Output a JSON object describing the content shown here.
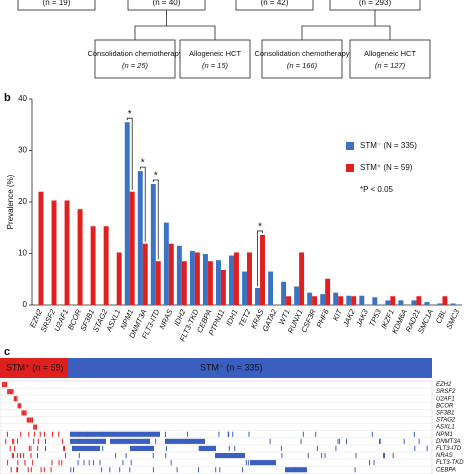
{
  "flowchart": {
    "top": [
      "(n = 19)",
      "(n = 40)",
      "(n = 42)",
      "(n = 293)"
    ],
    "nodes": [
      {
        "label": "Consolidation chemotherapy",
        "n": "(n = 25)"
      },
      {
        "label": "Allogeneic HCT",
        "n": "(n = 15)"
      },
      {
        "label": "Consolidation chemotherapy",
        "n": "(n = 166)"
      },
      {
        "label": "Allogeneic HCT",
        "n": "(n = 127)"
      }
    ]
  },
  "panels": [
    "b",
    "c"
  ],
  "chart_data": {
    "type": "bar",
    "ylabel": "Prevalence (%)",
    "categories": [
      "EZH2",
      "SRSF2",
      "U2AF1",
      "BCOR",
      "SF3B1",
      "STAG2",
      "ASXL1",
      "NPM1",
      "DNMT3A",
      "FLT3-ITD",
      "NRAS",
      "IDH2",
      "FLT3-TKD",
      "CEBPA",
      "PTPN11",
      "IDH1",
      "TET2",
      "KRAS",
      "GATA2",
      "WT1",
      "RUNX1",
      "CSF3R",
      "PHF6",
      "KIT",
      "JAK2",
      "JAK3",
      "TP53",
      "IKZF1",
      "KDM6A",
      "RAD21",
      "SMC1A",
      "CBL",
      "SMC3"
    ],
    "series": [
      {
        "name": "STM⁻ (N = 335)",
        "color": "#3b73c2",
        "values": [
          0,
          0,
          0,
          0,
          0,
          0,
          0,
          35.5,
          26,
          23.5,
          16,
          11.5,
          10.5,
          9.9,
          8.7,
          9.6,
          6.5,
          3.3,
          6.5,
          4.5,
          3.6,
          2.4,
          2.1,
          2.4,
          1.8,
          1.8,
          1.5,
          0.9,
          0.9,
          0.9,
          0.6,
          0.3,
          0.3
        ]
      },
      {
        "name": "STM⁺ (N = 59)",
        "color": "#e0201f",
        "values": [
          22,
          20.3,
          20.3,
          18.6,
          15.3,
          15.3,
          10.2,
          22,
          11.9,
          8.5,
          11.9,
          8.5,
          10.2,
          8.5,
          6.8,
          10.2,
          10.2,
          13.6,
          0,
          1.7,
          10.2,
          1.7,
          5.1,
          1.7,
          1.7,
          0,
          0,
          1.7,
          0,
          1.7,
          0,
          1.7,
          0
        ]
      }
    ],
    "ylim": [
      0,
      40
    ],
    "yticks": [
      0,
      10,
      20,
      30,
      40
    ],
    "annotations": [
      {
        "text": "*",
        "category": "NPM1"
      },
      {
        "text": "*",
        "category": "DNMT3A"
      },
      {
        "text": "*",
        "category": "FLT3-ITD"
      },
      {
        "text": "*",
        "category": "KRAS"
      }
    ],
    "note": "*P < 0.05",
    "legend": "upper right"
  },
  "heatmap": {
    "groups": [
      {
        "label": "STM⁺ (n = 59)",
        "color": "#e0201f"
      },
      {
        "label": "STM⁻ (n = 335)",
        "color": "#3b5fc0"
      }
    ],
    "genes": [
      "EZH2",
      "SRSF2",
      "U2AF1",
      "BCOR",
      "SF3B1",
      "STAG2",
      "ASXL1",
      "NPM1",
      "DNMT3A",
      "FLT3-ITD",
      "NRAS",
      "FLT3-TKD",
      "CEBPA"
    ]
  }
}
